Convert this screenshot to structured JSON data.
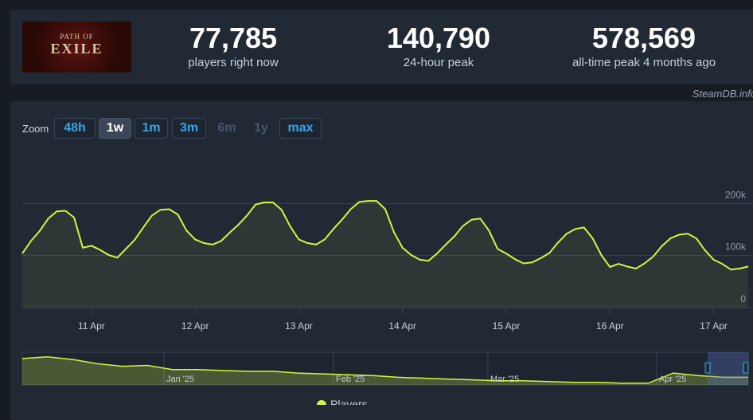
{
  "header": {
    "logo_top": "PATH OF",
    "logo_main": "EXILE",
    "stats": [
      {
        "value": "77,785",
        "label": "players right now"
      },
      {
        "value": "140,790",
        "label": "24-hour peak"
      },
      {
        "value": "578,569",
        "label": "all-time peak 4 months ago"
      }
    ],
    "credit": "SteamDB.info"
  },
  "zoom": {
    "label": "Zoom",
    "buttons": [
      {
        "text": "48h",
        "state": "normal"
      },
      {
        "text": "1w",
        "state": "active"
      },
      {
        "text": "1m",
        "state": "normal"
      },
      {
        "text": "3m",
        "state": "normal"
      },
      {
        "text": "6m",
        "state": "disabled"
      },
      {
        "text": "1y",
        "state": "disabled"
      },
      {
        "text": "max",
        "state": "normal"
      }
    ]
  },
  "chart_data": [
    {
      "type": "line",
      "grid": true,
      "series": [
        {
          "name": "Players",
          "color": "#d2f542",
          "values": [
            104000,
            128000,
            147000,
            171000,
            185000,
            186000,
            173000,
            115000,
            119000,
            111000,
            101000,
            96000,
            113000,
            130000,
            154000,
            177000,
            188000,
            189000,
            179000,
            148000,
            131000,
            124000,
            121000,
            128000,
            144000,
            159000,
            177000,
            198000,
            202000,
            202000,
            188000,
            156000,
            131000,
            124000,
            121000,
            131000,
            151000,
            169000,
            189000,
            203000,
            205000,
            205000,
            189000,
            145000,
            115000,
            101000,
            92000,
            90000,
            104000,
            121000,
            137000,
            157000,
            169000,
            171000,
            148000,
            113000,
            104000,
            93000,
            85000,
            87000,
            95000,
            105000,
            125000,
            142000,
            151000,
            154000,
            133000,
            101000,
            78000,
            84000,
            79000,
            75000,
            85000,
            98000,
            118000,
            133000,
            140000,
            142000,
            133000,
            110000,
            92000,
            84000,
            73000,
            75000,
            79000
          ]
        }
      ],
      "xlim": [
        0,
        84
      ],
      "xticks": [
        {
          "value": 8,
          "label": "11 Apr"
        },
        {
          "value": 20,
          "label": "12 Apr"
        },
        {
          "value": 32,
          "label": "13 Apr"
        },
        {
          "value": 44,
          "label": "14 Apr"
        },
        {
          "value": 56,
          "label": "15 Apr"
        },
        {
          "value": 68,
          "label": "16 Apr"
        },
        {
          "value": 80,
          "label": "17 Apr"
        }
      ],
      "ylim": [
        0,
        300000
      ],
      "yticks": [
        0,
        {
          "value": 100000,
          "label": "100k"
        },
        {
          "value": 200000,
          "label": "200k"
        }
      ]
    },
    {
      "type": "area",
      "color": "#d2f542",
      "values": [
        484000,
        515000,
        468000,
        390000,
        343000,
        359000,
        281000,
        281000,
        265000,
        250000,
        250000,
        218000,
        203000,
        187000,
        172000,
        140000,
        125000,
        109000,
        94000,
        78000,
        78000,
        62000,
        47000,
        47000,
        31000,
        31000,
        218000,
        172000,
        140000,
        140000
      ],
      "xlim": [
        0,
        29
      ],
      "ylim": [
        0,
        600000
      ],
      "xticks": [
        {
          "value": 5.66,
          "label": "Jan '25"
        },
        {
          "value": 12.43,
          "label": "Feb '25"
        },
        {
          "value": 18.6,
          "label": "Mar '25"
        },
        {
          "value": 25.34,
          "label": "Apr '25"
        }
      ]
    }
  ]
}
